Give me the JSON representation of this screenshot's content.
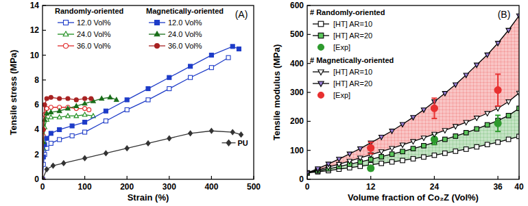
{
  "chart_data": [
    {
      "type": "line",
      "title": "(A)",
      "xlabel": "Strain (%)",
      "ylabel": "Tensile stress (MPa)",
      "xlim": [
        0,
        500
      ],
      "xticks": [
        0,
        100,
        200,
        300,
        400,
        500
      ],
      "ylim": [
        0,
        14
      ],
      "yticks": [
        0,
        2,
        4,
        6,
        8,
        10,
        12,
        14
      ],
      "grid": false,
      "legend": "upper left",
      "series": [
        {
          "name": "12.0 Vol%",
          "group": "Randomly-oriented",
          "color": "#1e3cc8",
          "marker": "open-square",
          "x": [
            0,
            2,
            5,
            10,
            20,
            40,
            70,
            100,
            150,
            200,
            250,
            300,
            350,
            400,
            440
          ],
          "values": [
            0,
            1.2,
            2.0,
            2.5,
            2.9,
            3.2,
            3.5,
            3.8,
            4.7,
            5.6,
            6.4,
            7.3,
            8.2,
            9.0,
            9.8
          ]
        },
        {
          "name": "24.0 Vol%",
          "group": "Randomly-oriented",
          "color": "#1a8c1a",
          "marker": "open-triangle",
          "x": [
            0,
            2,
            5,
            10,
            20,
            40,
            60,
            80,
            100,
            120
          ],
          "values": [
            0,
            2.5,
            4.2,
            4.8,
            5.0,
            5.0,
            5.1,
            5.1,
            5.2,
            5.1
          ]
        },
        {
          "name": "36.0 Vol%",
          "group": "Randomly-oriented",
          "color": "#e02828",
          "marker": "open-circle",
          "x": [
            0,
            2,
            5,
            10,
            20,
            40,
            60,
            80,
            100,
            110
          ],
          "values": [
            0,
            3.5,
            5.2,
            5.7,
            5.8,
            5.8,
            5.8,
            5.7,
            5.7,
            5.6
          ]
        },
        {
          "name": "12.0 Vol%",
          "group": "Magnetically-oriented",
          "color": "#1e3cc8",
          "marker": "square",
          "x": [
            0,
            2,
            5,
            10,
            20,
            40,
            70,
            100,
            150,
            200,
            250,
            300,
            350,
            400,
            450,
            465
          ],
          "values": [
            0,
            1.8,
            2.8,
            3.3,
            3.7,
            4.0,
            4.3,
            4.6,
            5.5,
            6.4,
            7.3,
            8.2,
            9.1,
            10.0,
            10.7,
            10.5
          ]
        },
        {
          "name": "24.0 Vol%",
          "group": "Magnetically-oriented",
          "color": "#1a6e1a",
          "marker": "triangle",
          "x": [
            0,
            2,
            5,
            10,
            20,
            40,
            60,
            80,
            100,
            120,
            140,
            160,
            175
          ],
          "values": [
            0,
            3.0,
            4.8,
            5.3,
            5.4,
            5.5,
            5.7,
            5.9,
            6.1,
            6.3,
            6.5,
            6.6,
            6.4
          ]
        },
        {
          "name": "36.0 Vol%",
          "group": "Magnetically-oriented",
          "color": "#a82222",
          "marker": "circle",
          "x": [
            0,
            2,
            5,
            10,
            20,
            40,
            60,
            80,
            100,
            115
          ],
          "values": [
            0,
            4.0,
            6.0,
            6.5,
            6.6,
            6.5,
            6.5,
            6.4,
            6.5,
            6.5
          ]
        },
        {
          "name": "PU",
          "color": "#333333",
          "marker": "diamond",
          "x": [
            0,
            10,
            25,
            50,
            100,
            150,
            200,
            250,
            300,
            350,
            400,
            450,
            470
          ],
          "values": [
            0,
            0.8,
            1.1,
            1.3,
            1.7,
            2.1,
            2.5,
            2.9,
            3.3,
            3.7,
            3.9,
            3.8,
            3.6
          ]
        }
      ]
    },
    {
      "type": "line",
      "title": "(B)",
      "xlabel": "Volume fraction of Co₂Z (Vol%)",
      "ylabel": "Tensile modulus (MPa)",
      "xlim": [
        0,
        40
      ],
      "xticks": [
        0,
        12,
        24,
        36,
        40
      ],
      "ylim": [
        0,
        600
      ],
      "yticks": [
        0,
        100,
        200,
        300,
        400,
        500,
        600
      ],
      "grid": false,
      "legend": "upper left",
      "x": [
        0,
        2,
        4,
        6,
        8,
        10,
        12,
        14,
        16,
        18,
        20,
        22,
        24,
        26,
        28,
        30,
        32,
        34,
        36,
        38,
        40
      ],
      "series": [
        {
          "name": "[HT] AR=10",
          "group": "# Randomly-oriented",
          "type": "line",
          "color": "#000000",
          "marker": "open-square",
          "values": [
            22,
            26,
            30,
            35,
            40,
            45,
            50,
            55,
            60,
            65,
            71,
            77,
            83,
            90,
            97,
            104,
            112,
            120,
            128,
            138,
            148
          ]
        },
        {
          "name": "[HT] AR=20",
          "group": "# Randomly-oriented",
          "type": "line",
          "color": "#5cc85c",
          "marker": "square",
          "values": [
            22,
            29,
            36,
            44,
            52,
            60,
            69,
            78,
            87,
            96,
            106,
            116,
            127,
            138,
            149,
            161,
            174,
            188,
            203,
            220,
            245
          ]
        },
        {
          "name": "[Exp]",
          "group": "# Randomly-oriented",
          "type": "scatter",
          "color": "#2e9a2e",
          "marker": "circle",
          "x": [
            12,
            24,
            36
          ],
          "values": [
            38,
            138,
            193
          ],
          "errors": [
            8,
            18,
            28
          ]
        },
        {
          "name": "[HT] AR=10",
          "group": "# Magnetically-oriented",
          "type": "line",
          "color": "#000000",
          "marker": "open-triangle-down",
          "values": [
            22,
            32,
            42,
            52,
            63,
            74,
            85,
            96,
            107,
            119,
            131,
            143,
            156,
            169,
            183,
            197,
            212,
            228,
            245,
            268,
            298
          ]
        },
        {
          "name": "[HT] AR=20",
          "group": "# Magnetically-oriented",
          "type": "line",
          "color": "#9a7fd6",
          "marker": "triangle-down",
          "values": [
            22,
            37,
            53,
            70,
            88,
            106,
            126,
            146,
            167,
            190,
            214,
            240,
            268,
            297,
            327,
            360,
            395,
            430,
            470,
            515,
            565
          ]
        },
        {
          "name": "[Exp]",
          "group": "# Magnetically-oriented",
          "type": "scatter",
          "color": "#e83030",
          "marker": "circle",
          "x": [
            12,
            24,
            36
          ],
          "values": [
            108,
            245,
            308
          ],
          "errors": [
            20,
            35,
            55
          ]
        }
      ]
    }
  ]
}
